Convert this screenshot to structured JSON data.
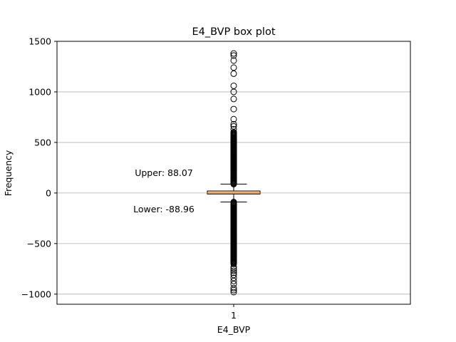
{
  "chart_data": {
    "type": "box",
    "title": "E4_BVP box plot",
    "xlabel": "E4_BVP",
    "ylabel": "Frequency",
    "ylim": [
      -1100,
      1500
    ],
    "yticks": [
      -1000,
      -500,
      0,
      500,
      1000,
      1500
    ],
    "ytick_labels": [
      "−1000",
      "−500",
      "0",
      "500",
      "1000",
      "1500"
    ],
    "xtick_labels": [
      "1"
    ],
    "grid": "y",
    "box": {
      "q1": -10,
      "median": 1,
      "q3": 20,
      "whisker_low": -88.96,
      "whisker_high": 88.07,
      "fill": "#fcdcbc",
      "median_color": "#ff7f0e"
    },
    "flier_range_low": [
      -700,
      -88.96
    ],
    "flier_range_high": [
      88.07,
      600
    ],
    "fliers_extra": [
      -980,
      -960,
      -940,
      -900,
      -870,
      -840,
      -810,
      -790,
      -770,
      -750,
      -730,
      630,
      660,
      680,
      730,
      830,
      930,
      1000,
      1060,
      1180,
      1240,
      1310,
      1360,
      1380
    ],
    "annotations": [
      {
        "text": "Upper: 88.07",
        "y": 200
      },
      {
        "text": "Lower: -88.96",
        "y": -160
      }
    ]
  }
}
